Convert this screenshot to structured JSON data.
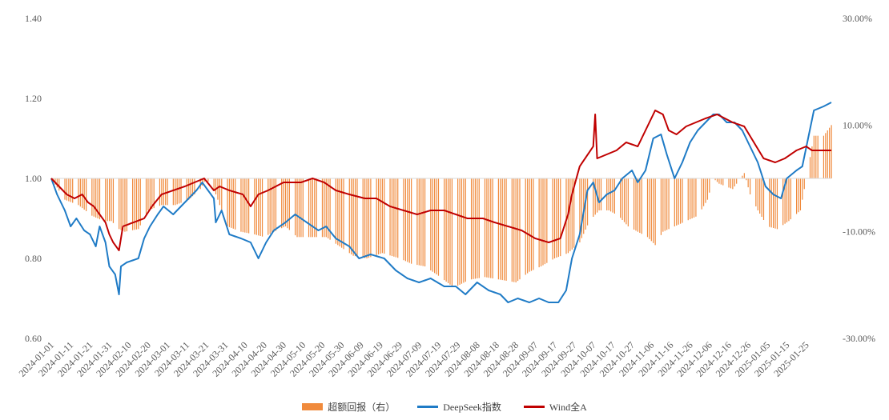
{
  "chart_data": {
    "type": "line",
    "title": "",
    "xlabel": "",
    "ylabel": "",
    "x_tick_labels": [
      "2024-01-01",
      "2024-01-11",
      "2024-01-21",
      "2024-01-31",
      "2024-02-10",
      "2024-02-20",
      "2024-03-01",
      "2024-03-11",
      "2024-03-21",
      "2024-03-31",
      "2024-04-10",
      "2024-04-20",
      "2024-04-30",
      "2024-05-10",
      "2024-05-20",
      "2024-05-30",
      "2024-06-09",
      "2024-06-19",
      "2024-06-29",
      "2024-07-09",
      "2024-07-19",
      "2024-07-29",
      "2024-08-08",
      "2024-08-18",
      "2024-08-28",
      "2024-09-07",
      "2024-09-17",
      "2024-09-27",
      "2024-10-07",
      "2024-10-17",
      "2024-10-27",
      "2024-11-06",
      "2024-11-16",
      "2024-11-26",
      "2024-12-06",
      "2024-12-16",
      "2024-12-26",
      "2025-01-05",
      "2025-01-15",
      "2025-01-25"
    ],
    "y_left": {
      "ylim": [
        0.6,
        1.4
      ],
      "ticks": [
        "0.60",
        "0.80",
        "1.00",
        "1.20",
        "1.40"
      ]
    },
    "y_right": {
      "ylim": [
        -30,
        30
      ],
      "ticks": [
        "-30.00%",
        "-10.00%",
        "10.00%",
        "30.00%"
      ]
    },
    "x_range": [
      "2024-01-01",
      "2025-02-07"
    ],
    "grid": false,
    "legend_position": "bottom",
    "series": [
      {
        "name": "超额回报（右）",
        "type": "bar",
        "axis": "right",
        "color": "#F08A3C",
        "points": [
          [
            "2024-01-01",
            0
          ],
          [
            "2024-01-08",
            -4
          ],
          [
            "2024-01-15",
            -5
          ],
          [
            "2024-01-22",
            -7
          ],
          [
            "2024-01-28",
            -8
          ],
          [
            "2024-02-01",
            -8
          ],
          [
            "2024-02-05",
            -9.5
          ],
          [
            "2024-02-08",
            -10
          ],
          [
            "2024-02-15",
            -9.5
          ],
          [
            "2024-02-20",
            -6
          ],
          [
            "2024-02-27",
            -5
          ],
          [
            "2024-03-05",
            -5
          ],
          [
            "2024-03-12",
            -4
          ],
          [
            "2024-03-18",
            -2
          ],
          [
            "2024-03-21",
            0
          ],
          [
            "2024-03-26",
            -3
          ],
          [
            "2024-04-01",
            -9
          ],
          [
            "2024-04-08",
            -10
          ],
          [
            "2024-04-15",
            -10.5
          ],
          [
            "2024-04-20",
            -11
          ],
          [
            "2024-04-25",
            -10
          ],
          [
            "2024-05-01",
            -9
          ],
          [
            "2024-05-07",
            -11
          ],
          [
            "2024-05-15",
            -11
          ],
          [
            "2024-05-22",
            -11
          ],
          [
            "2024-05-30",
            -13
          ],
          [
            "2024-06-05",
            -14.5
          ],
          [
            "2024-06-12",
            -15
          ],
          [
            "2024-06-20",
            -14
          ],
          [
            "2024-06-29",
            -15
          ],
          [
            "2024-07-05",
            -16
          ],
          [
            "2024-07-12",
            -16.5
          ],
          [
            "2024-07-20",
            -18.5
          ],
          [
            "2024-07-27",
            -20.5
          ],
          [
            "2024-08-04",
            -19
          ],
          [
            "2024-08-12",
            -18.5
          ],
          [
            "2024-08-20",
            -19
          ],
          [
            "2024-08-28",
            -19.5
          ],
          [
            "2024-09-04",
            -17.5
          ],
          [
            "2024-09-10",
            -16.5
          ],
          [
            "2024-09-17",
            -15
          ],
          [
            "2024-09-24",
            -14
          ],
          [
            "2024-09-30",
            -12
          ],
          [
            "2024-10-05",
            -8
          ],
          [
            "2024-10-10",
            -6
          ],
          [
            "2024-10-15",
            -6
          ],
          [
            "2024-10-20",
            -7
          ],
          [
            "2024-10-25",
            -9
          ],
          [
            "2024-10-30",
            -10
          ],
          [
            "2024-11-04",
            -11
          ],
          [
            "2024-11-08",
            -12.5
          ],
          [
            "2024-11-12",
            -10
          ],
          [
            "2024-11-18",
            -9
          ],
          [
            "2024-11-24",
            -8
          ],
          [
            "2024-11-30",
            -7
          ],
          [
            "2024-12-05",
            -4
          ],
          [
            "2024-12-08",
            0
          ],
          [
            "2024-12-11",
            -1
          ],
          [
            "2024-12-18",
            -2
          ],
          [
            "2024-12-24",
            1
          ],
          [
            "2024-12-27",
            -3
          ],
          [
            "2024-12-31",
            -6
          ],
          [
            "2025-01-05",
            -9
          ],
          [
            "2025-01-10",
            -9.5
          ],
          [
            "2025-01-16",
            -8
          ],
          [
            "2025-01-22",
            -6
          ],
          [
            "2025-01-25",
            0
          ],
          [
            "2025-01-29",
            8
          ],
          [
            "2025-02-03",
            8
          ],
          [
            "2025-02-07",
            10
          ]
        ]
      },
      {
        "name": "DeepSeek指数",
        "type": "line",
        "axis": "left",
        "color": "#1F7BC6",
        "points": [
          [
            "2024-01-01",
            1.0
          ],
          [
            "2024-01-04",
            0.96
          ],
          [
            "2024-01-08",
            0.92
          ],
          [
            "2024-01-11",
            0.88
          ],
          [
            "2024-01-14",
            0.9
          ],
          [
            "2024-01-18",
            0.87
          ],
          [
            "2024-01-21",
            0.86
          ],
          [
            "2024-01-24",
            0.83
          ],
          [
            "2024-01-26",
            0.88
          ],
          [
            "2024-01-29",
            0.84
          ],
          [
            "2024-01-31",
            0.78
          ],
          [
            "2024-02-03",
            0.76
          ],
          [
            "2024-02-05",
            0.71
          ],
          [
            "2024-02-06",
            0.78
          ],
          [
            "2024-02-09",
            0.79
          ],
          [
            "2024-02-15",
            0.8
          ],
          [
            "2024-02-18",
            0.85
          ],
          [
            "2024-02-21",
            0.88
          ],
          [
            "2024-02-25",
            0.91
          ],
          [
            "2024-02-28",
            0.93
          ],
          [
            "2024-03-04",
            0.91
          ],
          [
            "2024-03-08",
            0.93
          ],
          [
            "2024-03-12",
            0.95
          ],
          [
            "2024-03-16",
            0.97
          ],
          [
            "2024-03-19",
            0.99
          ],
          [
            "2024-03-22",
            0.97
          ],
          [
            "2024-03-25",
            0.95
          ],
          [
            "2024-03-26",
            0.89
          ],
          [
            "2024-03-29",
            0.92
          ],
          [
            "2024-04-02",
            0.86
          ],
          [
            "2024-04-08",
            0.85
          ],
          [
            "2024-04-13",
            0.84
          ],
          [
            "2024-04-17",
            0.8
          ],
          [
            "2024-04-21",
            0.84
          ],
          [
            "2024-04-25",
            0.87
          ],
          [
            "2024-05-01",
            0.89
          ],
          [
            "2024-05-06",
            0.91
          ],
          [
            "2024-05-12",
            0.89
          ],
          [
            "2024-05-18",
            0.87
          ],
          [
            "2024-05-22",
            0.88
          ],
          [
            "2024-05-27",
            0.85
          ],
          [
            "2024-06-03",
            0.83
          ],
          [
            "2024-06-08",
            0.8
          ],
          [
            "2024-06-14",
            0.81
          ],
          [
            "2024-06-21",
            0.8
          ],
          [
            "2024-06-27",
            0.77
          ],
          [
            "2024-07-03",
            0.75
          ],
          [
            "2024-07-09",
            0.74
          ],
          [
            "2024-07-15",
            0.75
          ],
          [
            "2024-07-22",
            0.73
          ],
          [
            "2024-07-28",
            0.73
          ],
          [
            "2024-08-02",
            0.71
          ],
          [
            "2024-08-08",
            0.74
          ],
          [
            "2024-08-14",
            0.72
          ],
          [
            "2024-08-20",
            0.71
          ],
          [
            "2024-08-24",
            0.69
          ],
          [
            "2024-08-29",
            0.7
          ],
          [
            "2024-09-04",
            0.69
          ],
          [
            "2024-09-09",
            0.7
          ],
          [
            "2024-09-14",
            0.69
          ],
          [
            "2024-09-19",
            0.69
          ],
          [
            "2024-09-23",
            0.72
          ],
          [
            "2024-09-26",
            0.8
          ],
          [
            "2024-09-30",
            0.86
          ],
          [
            "2024-10-04",
            0.97
          ],
          [
            "2024-10-07",
            0.99
          ],
          [
            "2024-10-10",
            0.94
          ],
          [
            "2024-10-14",
            0.96
          ],
          [
            "2024-10-18",
            0.97
          ],
          [
            "2024-10-22",
            1.0
          ],
          [
            "2024-10-27",
            1.02
          ],
          [
            "2024-10-30",
            0.99
          ],
          [
            "2024-11-03",
            1.02
          ],
          [
            "2024-11-07",
            1.1
          ],
          [
            "2024-11-11",
            1.11
          ],
          [
            "2024-11-14",
            1.06
          ],
          [
            "2024-11-18",
            1.0
          ],
          [
            "2024-11-22",
            1.04
          ],
          [
            "2024-11-26",
            1.09
          ],
          [
            "2024-11-30",
            1.12
          ],
          [
            "2024-12-04",
            1.14
          ],
          [
            "2024-12-08",
            1.16
          ],
          [
            "2024-12-11",
            1.16
          ],
          [
            "2024-12-15",
            1.14
          ],
          [
            "2024-12-19",
            1.14
          ],
          [
            "2024-12-23",
            1.12
          ],
          [
            "2024-12-27",
            1.08
          ],
          [
            "2024-12-31",
            1.04
          ],
          [
            "2025-01-04",
            0.98
          ],
          [
            "2025-01-08",
            0.96
          ],
          [
            "2025-01-12",
            0.95
          ],
          [
            "2025-01-15",
            1.0
          ],
          [
            "2025-01-20",
            1.02
          ],
          [
            "2025-01-23",
            1.03
          ],
          [
            "2025-01-26",
            1.1
          ],
          [
            "2025-01-29",
            1.17
          ],
          [
            "2025-02-03",
            1.18
          ],
          [
            "2025-02-07",
            1.19
          ]
        ]
      },
      {
        "name": "Wind全A",
        "type": "line",
        "axis": "left",
        "color": "#C00000",
        "points": [
          [
            "2024-01-01",
            1.0
          ],
          [
            "2024-01-05",
            0.98
          ],
          [
            "2024-01-09",
            0.96
          ],
          [
            "2024-01-13",
            0.95
          ],
          [
            "2024-01-17",
            0.96
          ],
          [
            "2024-01-20",
            0.94
          ],
          [
            "2024-01-23",
            0.93
          ],
          [
            "2024-01-26",
            0.91
          ],
          [
            "2024-01-29",
            0.89
          ],
          [
            "2024-01-31",
            0.86
          ],
          [
            "2024-02-02",
            0.84
          ],
          [
            "2024-02-05",
            0.82
          ],
          [
            "2024-02-07",
            0.88
          ],
          [
            "2024-02-18",
            0.9
          ],
          [
            "2024-02-22",
            0.93
          ],
          [
            "2024-02-27",
            0.96
          ],
          [
            "2024-03-04",
            0.97
          ],
          [
            "2024-03-10",
            0.98
          ],
          [
            "2024-03-15",
            0.99
          ],
          [
            "2024-03-20",
            1.0
          ],
          [
            "2024-03-25",
            0.97
          ],
          [
            "2024-03-28",
            0.98
          ],
          [
            "2024-04-02",
            0.97
          ],
          [
            "2024-04-09",
            0.96
          ],
          [
            "2024-04-13",
            0.93
          ],
          [
            "2024-04-17",
            0.96
          ],
          [
            "2024-04-22",
            0.97
          ],
          [
            "2024-04-30",
            0.99
          ],
          [
            "2024-05-09",
            0.99
          ],
          [
            "2024-05-15",
            1.0
          ],
          [
            "2024-05-21",
            0.99
          ],
          [
            "2024-05-27",
            0.97
          ],
          [
            "2024-06-03",
            0.96
          ],
          [
            "2024-06-11",
            0.95
          ],
          [
            "2024-06-17",
            0.95
          ],
          [
            "2024-06-24",
            0.93
          ],
          [
            "2024-07-01",
            0.92
          ],
          [
            "2024-07-08",
            0.91
          ],
          [
            "2024-07-15",
            0.92
          ],
          [
            "2024-07-22",
            0.92
          ],
          [
            "2024-07-28",
            0.91
          ],
          [
            "2024-08-03",
            0.9
          ],
          [
            "2024-08-11",
            0.9
          ],
          [
            "2024-08-17",
            0.89
          ],
          [
            "2024-08-24",
            0.88
          ],
          [
            "2024-08-31",
            0.87
          ],
          [
            "2024-09-07",
            0.85
          ],
          [
            "2024-09-14",
            0.84
          ],
          [
            "2024-09-20",
            0.85
          ],
          [
            "2024-09-24",
            0.91
          ],
          [
            "2024-09-26",
            0.96
          ],
          [
            "2024-09-30",
            1.03
          ],
          [
            "2024-10-07",
            1.08
          ],
          [
            "2024-10-08",
            1.16
          ],
          [
            "2024-10-09",
            1.05
          ],
          [
            "2024-10-14",
            1.06
          ],
          [
            "2024-10-19",
            1.07
          ],
          [
            "2024-10-24",
            1.09
          ],
          [
            "2024-10-30",
            1.08
          ],
          [
            "2024-11-04",
            1.13
          ],
          [
            "2024-11-08",
            1.17
          ],
          [
            "2024-11-12",
            1.16
          ],
          [
            "2024-11-15",
            1.12
          ],
          [
            "2024-11-19",
            1.11
          ],
          [
            "2024-11-24",
            1.13
          ],
          [
            "2024-11-29",
            1.14
          ],
          [
            "2024-12-04",
            1.15
          ],
          [
            "2024-12-10",
            1.16
          ],
          [
            "2024-12-14",
            1.15
          ],
          [
            "2024-12-18",
            1.14
          ],
          [
            "2024-12-24",
            1.13
          ],
          [
            "2024-12-29",
            1.09
          ],
          [
            "2025-01-03",
            1.05
          ],
          [
            "2025-01-09",
            1.04
          ],
          [
            "2025-01-14",
            1.05
          ],
          [
            "2025-01-20",
            1.07
          ],
          [
            "2025-01-25",
            1.08
          ],
          [
            "2025-01-28",
            1.07
          ],
          [
            "2025-02-07",
            1.07
          ]
        ]
      }
    ]
  }
}
